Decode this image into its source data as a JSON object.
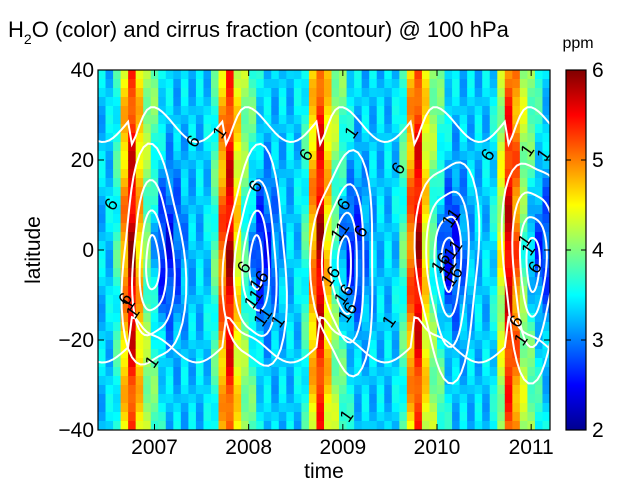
{
  "chart_data": {
    "type": "heatmap",
    "title": {
      "prefix": "H",
      "subscript": "2",
      "suffix": "O (color) and cirrus fraction (contour) @ 100 hPa"
    },
    "xlabel": "time",
    "ylabel": "latitude",
    "xlim": [
      2006.4,
      2011.2
    ],
    "ylim": [
      -40,
      40
    ],
    "x_ticks": [
      "2007",
      "2008",
      "2009",
      "2010",
      "2011"
    ],
    "x_tick_values": [
      2007,
      2008,
      2009,
      2010,
      2011
    ],
    "y_ticks": [
      "40",
      "20",
      "0",
      "−20",
      "−40"
    ],
    "y_tick_values": [
      40,
      20,
      0,
      -20,
      -40
    ],
    "colorbar": {
      "label": "ppm",
      "ticks": [
        "6",
        "5",
        "4",
        "3",
        "2"
      ],
      "tick_values": [
        6,
        5,
        4,
        3,
        2
      ],
      "range": [
        2,
        6
      ],
      "colormap": "jet"
    },
    "color_field": {
      "description_values": "H2O mixing ratio in ppm, seasonal maxima near September-October each year",
      "wet_peaks": [
        2006.75,
        2007.78,
        2008.75,
        2009.78,
        2010.78
      ],
      "dry_minimum_ppm": 2.2,
      "wet_maximum_ppm": 6.0
    },
    "contour_levels": [
      1,
      6,
      11,
      16
    ],
    "contour_labels": [
      {
        "text": "1",
        "x": 2007.7,
        "y": 26
      },
      {
        "text": "6",
        "x": 2007.42,
        "y": 24
      },
      {
        "text": "6",
        "x": 2006.55,
        "y": 10
      },
      {
        "text": "6",
        "x": 2008.08,
        "y": 14
      },
      {
        "text": "6",
        "x": 2008.62,
        "y": 21
      },
      {
        "text": "1",
        "x": 2009.1,
        "y": 26
      },
      {
        "text": "6",
        "x": 2009.6,
        "y": 18
      },
      {
        "text": "6",
        "x": 2010.55,
        "y": 21
      },
      {
        "text": "1",
        "x": 2010.97,
        "y": 22
      },
      {
        "text": "1",
        "x": 2011.14,
        "y": 21
      },
      {
        "text": "6",
        "x": 2009.02,
        "y": 10
      },
      {
        "text": "6",
        "x": 2009.2,
        "y": 4
      },
      {
        "text": "11",
        "x": 2008.98,
        "y": 4
      },
      {
        "text": "11",
        "x": 2010.16,
        "y": 7
      },
      {
        "text": "11",
        "x": 2010.18,
        "y": 0
      },
      {
        "text": "16",
        "x": 2010.05,
        "y": -3
      },
      {
        "text": "11",
        "x": 2010.12,
        "y": -4
      },
      {
        "text": "16",
        "x": 2010.18,
        "y": -6
      },
      {
        "text": "1",
        "x": 2010.94,
        "y": 2
      },
      {
        "text": "1",
        "x": 2010.98,
        "y": 0
      },
      {
        "text": "6",
        "x": 2011.05,
        "y": -4
      },
      {
        "text": "6",
        "x": 2007.96,
        "y": -4
      },
      {
        "text": "16",
        "x": 2008.12,
        "y": -7
      },
      {
        "text": "11",
        "x": 2008.06,
        "y": -11
      },
      {
        "text": "11",
        "x": 2008.16,
        "y": -15
      },
      {
        "text": "1",
        "x": 2008.32,
        "y": -16
      },
      {
        "text": "16",
        "x": 2008.88,
        "y": -6
      },
      {
        "text": "16",
        "x": 2009.02,
        "y": -10
      },
      {
        "text": "16",
        "x": 2009.06,
        "y": -14
      },
      {
        "text": "1",
        "x": 2009.5,
        "y": -16
      },
      {
        "text": "6",
        "x": 2006.7,
        "y": -11
      },
      {
        "text": "1",
        "x": 2006.73,
        "y": -12
      },
      {
        "text": "1",
        "x": 2006.78,
        "y": -14
      },
      {
        "text": "1",
        "x": 2006.98,
        "y": -25
      },
      {
        "text": "6",
        "x": 2010.85,
        "y": -16
      },
      {
        "text": "1",
        "x": 2010.9,
        "y": -20
      },
      {
        "text": "1",
        "x": 2009.05,
        "y": -37
      }
    ]
  }
}
